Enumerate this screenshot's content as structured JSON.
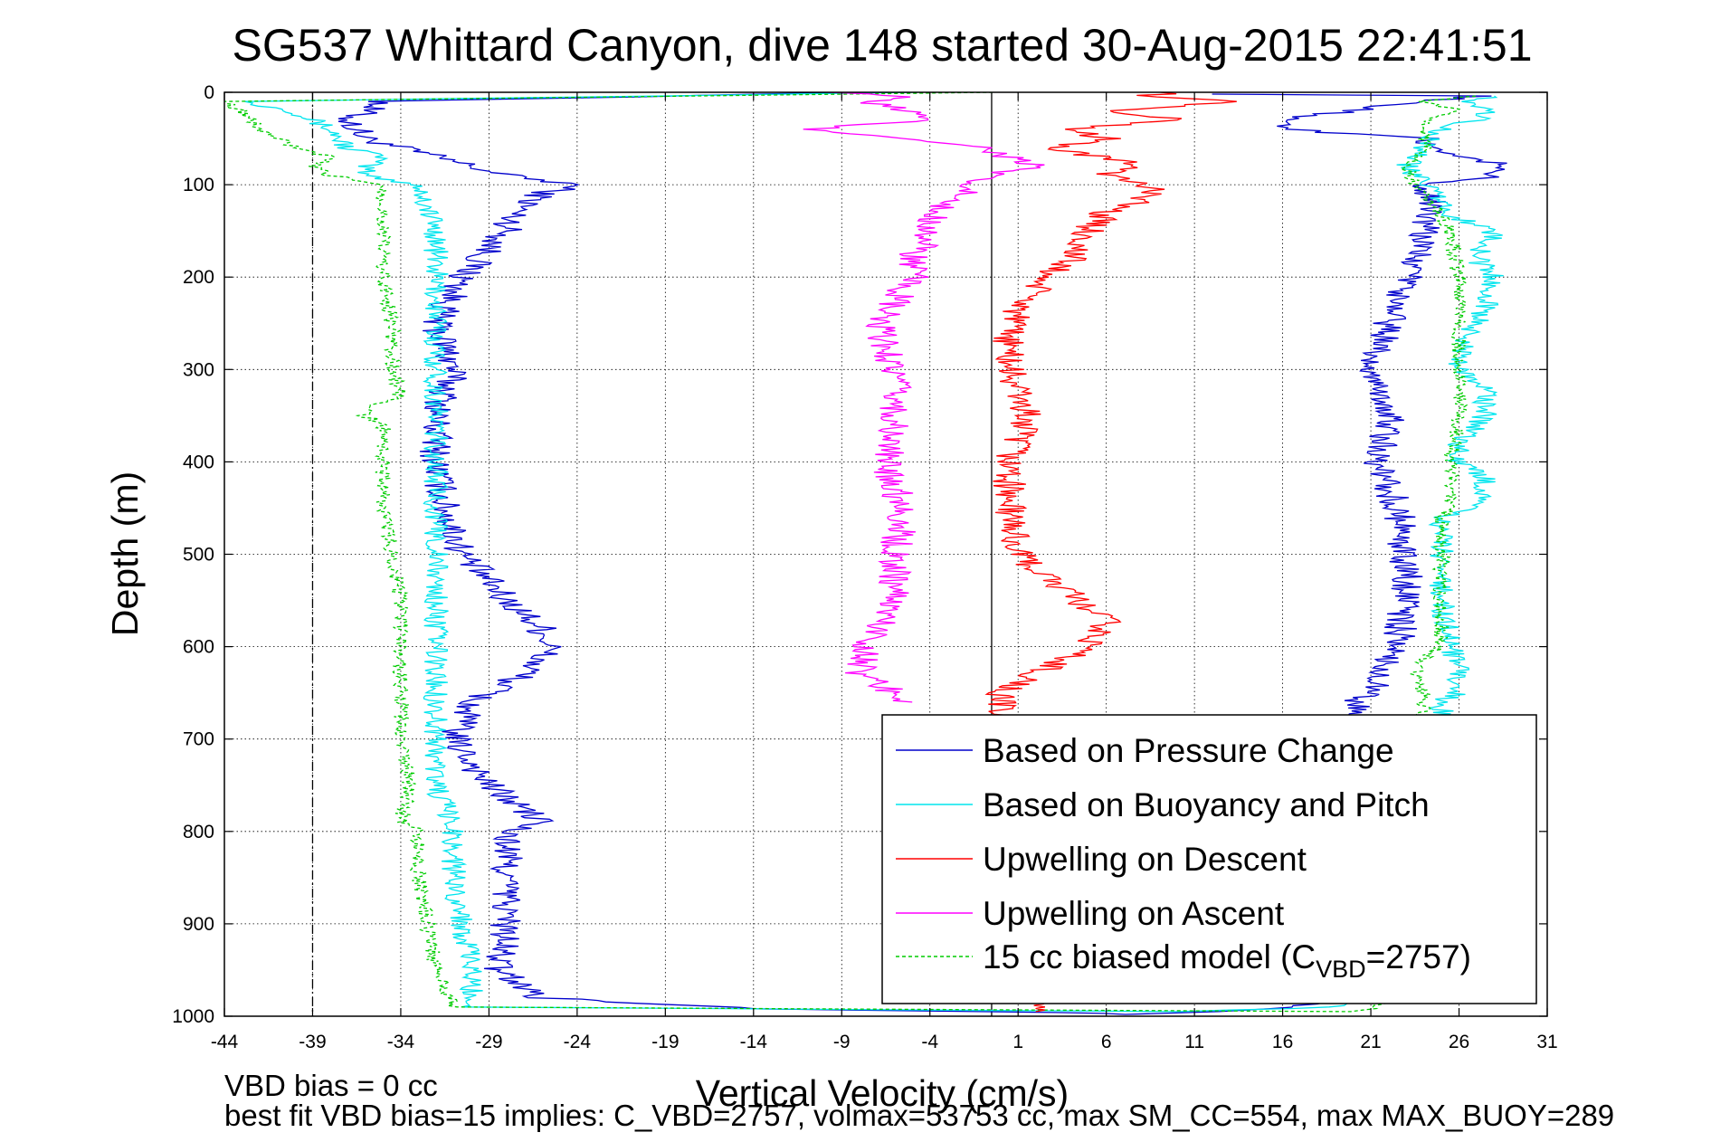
{
  "chart_data": {
    "type": "line",
    "title": "SG537 Whittard Canyon, dive 148 started 30-Aug-2015 22:41:51",
    "xlabel": "Vertical Velocity (cm/s)",
    "ylabel": "Depth (m)",
    "xlim": [
      -44,
      31
    ],
    "ylim": [
      0,
      1000
    ],
    "y_reversed": true,
    "grid": true,
    "legend_position": "bottom-right",
    "x_ticks": [
      "-44",
      "-39",
      "-34",
      "-29",
      "-24",
      "-19",
      "-14",
      "-9",
      "-4",
      "1",
      "6",
      "11",
      "16",
      "21",
      "26",
      "31"
    ],
    "y_ticks": [
      "0",
      "100",
      "200",
      "300",
      "400",
      "500",
      "600",
      "700",
      "800",
      "900",
      "1000"
    ],
    "reference_lines": [
      {
        "x": -39,
        "style": "dash-dot",
        "color": "#000000"
      },
      {
        "x": -0.5,
        "style": "solid",
        "color": "#000000"
      }
    ],
    "series": [
      {
        "name": "Based on Pressure Change",
        "color": "#0000cc",
        "style": "solid",
        "depth": [
          0,
          10,
          30,
          50,
          70,
          90,
          100,
          110,
          130,
          150,
          180,
          200,
          250,
          300,
          350,
          400,
          450,
          500,
          550,
          580,
          600,
          630,
          660,
          700,
          750,
          790,
          800,
          850,
          900,
          950,
          980,
          992,
          996,
          998,
          992,
          985,
          950,
          900,
          850,
          800,
          750,
          700,
          660,
          650,
          620,
          600,
          550,
          500,
          450,
          400,
          350,
          300,
          250,
          200,
          150,
          120,
          100,
          90,
          80,
          70,
          50,
          40,
          30,
          20,
          10,
          4,
          2
        ],
        "velocity": [
          -8,
          -35,
          -37,
          -36,
          -32,
          -28,
          -24,
          -26,
          -27.5,
          -28,
          -29.5,
          -30.5,
          -32,
          -31,
          -32,
          -32,
          -31.5,
          -30.5,
          -28,
          -26,
          -25.5,
          -27,
          -30,
          -31,
          -29,
          -26,
          -28,
          -28,
          -28,
          -28.5,
          -26,
          -14,
          4,
          8,
          16,
          19,
          20.5,
          20.5,
          20.5,
          20.5,
          20.5,
          20.5,
          20,
          21,
          22,
          22.5,
          23,
          23,
          22.5,
          21.5,
          22,
          21,
          22,
          23,
          24,
          24.5,
          24,
          28,
          29,
          26,
          24,
          16,
          16,
          20,
          24,
          27,
          12
        ]
      },
      {
        "name": "Based on Buoyancy and Pitch",
        "color": "#00e5ee",
        "style": "solid",
        "depth": [
          0,
          10,
          20,
          40,
          60,
          70,
          80,
          90,
          100,
          150,
          200,
          250,
          300,
          350,
          400,
          450,
          500,
          550,
          600,
          650,
          700,
          750,
          800,
          850,
          900,
          950,
          990,
          995,
          990,
          950,
          900,
          850,
          800,
          750,
          700,
          660,
          650,
          620,
          600,
          550,
          500,
          460,
          450,
          420,
          400,
          380,
          350,
          320,
          300,
          280,
          250,
          230,
          200,
          180,
          150,
          130,
          110,
          100,
          80,
          60,
          40,
          30,
          20,
          10,
          4
        ],
        "velocity": [
          -4,
          -43,
          -40,
          -38,
          -37,
          -35,
          -36,
          -36,
          -33,
          -32,
          -32,
          -32,
          -32,
          -32,
          -32,
          -32,
          -32,
          -32,
          -32,
          -32,
          -32,
          -32,
          -31,
          -31,
          -30.5,
          -30,
          -30,
          10,
          19,
          24,
          24.5,
          24.5,
          24.5,
          24.5,
          25,
          25,
          26,
          26,
          25.5,
          25,
          25,
          25,
          27.5,
          27.5,
          26,
          26,
          27.5,
          27.5,
          26,
          26,
          27,
          27.5,
          28,
          27,
          28,
          25,
          25,
          24,
          23,
          24,
          25,
          27,
          28,
          26,
          28
        ]
      },
      {
        "name": "Upwelling on Descent",
        "color": "#ff0000",
        "style": "solid",
        "depth": [
          0,
          5,
          10,
          20,
          30,
          40,
          50,
          60,
          80,
          90,
          100,
          110,
          130,
          150,
          180,
          200,
          250,
          300,
          350,
          400,
          450,
          500,
          530,
          560,
          570,
          600,
          630,
          650,
          670,
          700,
          800,
          900,
          985,
          990,
          995
        ],
        "velocity": [
          10,
          8,
          14,
          6,
          10,
          4,
          6,
          3,
          8,
          6,
          8,
          9,
          6,
          5,
          4,
          2.5,
          0.5,
          0.5,
          1.5,
          0.5,
          0.5,
          1,
          3,
          5,
          6,
          5,
          2,
          0,
          0,
          0,
          0,
          0,
          2,
          2,
          2
        ]
      },
      {
        "name": "Upwelling on Ascent",
        "color": "#ff00ff",
        "style": "solid",
        "depth": [
          0,
          5,
          10,
          20,
          30,
          40,
          50,
          60,
          80,
          90,
          100,
          110,
          120,
          150,
          180,
          200,
          250,
          300,
          350,
          400,
          450,
          500,
          550,
          600,
          630,
          660
        ],
        "velocity": [
          -9,
          -5,
          -8,
          -5,
          -4.5,
          -11,
          -5,
          -1,
          2,
          -1,
          -2,
          -2,
          -3.5,
          -4,
          -5,
          -5,
          -7,
          -6,
          -6,
          -6.5,
          -5.5,
          -6,
          -6,
          -7.5,
          -8,
          -5
        ]
      },
      {
        "name": "15 cc biased model (C_VBD=2757)",
        "color": "#00cc00",
        "style": "dashed",
        "depth": [
          0,
          10,
          20,
          40,
          60,
          70,
          80,
          90,
          100,
          150,
          200,
          250,
          300,
          330,
          340,
          350,
          360,
          380,
          400,
          450,
          500,
          550,
          600,
          650,
          700,
          750,
          790,
          800,
          850,
          900,
          950,
          990,
          995,
          990,
          950,
          900,
          850,
          800,
          750,
          700,
          660,
          650,
          620,
          600,
          550,
          500,
          460,
          450,
          400,
          350,
          300,
          250,
          200,
          150,
          130,
          110,
          100,
          80,
          60,
          40,
          30,
          20,
          10,
          4
        ],
        "velocity": [
          0,
          -44,
          -43,
          -42,
          -40,
          -38,
          -39,
          -38,
          -35,
          -35,
          -35,
          -34.5,
          -34.5,
          -34,
          -36,
          -36,
          -35,
          -35,
          -35,
          -35,
          -34.5,
          -34,
          -34,
          -34,
          -34,
          -33.5,
          -34,
          -33,
          -33,
          -32.5,
          -32,
          -31,
          20,
          21.5,
          24,
          24,
          24,
          24,
          24,
          24,
          24,
          24,
          23.5,
          25,
          25,
          25,
          25,
          25.5,
          25.5,
          26,
          26,
          26,
          26,
          25.5,
          25,
          24,
          23.5,
          23,
          24,
          24,
          24,
          26,
          24,
          27
        ]
      }
    ],
    "footer_lines": [
      "VBD bias = 0 cc",
      "best fit VBD bias=15 implies: C_VBD=2757, volmax=53753 cc, max SM_CC=554, max MAX_BUOY=289"
    ],
    "legend_label": {
      "15cc_prefix": "15 cc biased model (C",
      "15cc_sub": "VBD",
      "15cc_suffix": "=2757)"
    }
  }
}
